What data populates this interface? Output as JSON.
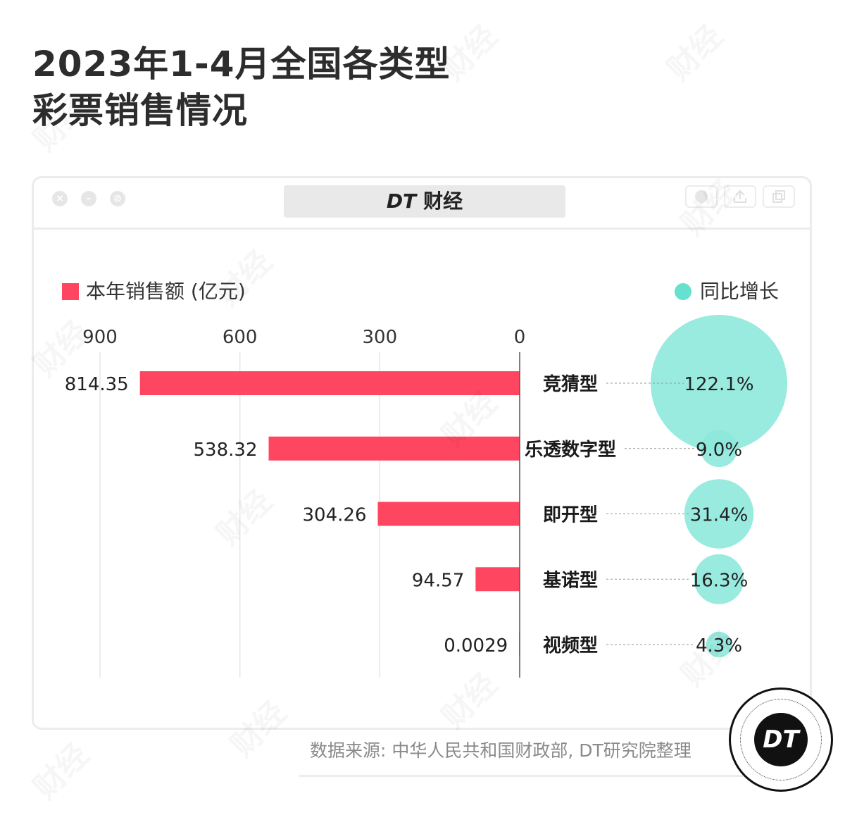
{
  "title": [
    "2023年1-4月全国各类型",
    "彩票销售情况"
  ],
  "window": {
    "address_brand": "DT",
    "address_text": "财经"
  },
  "footer": {
    "source": "数据来源: 中华人民共和国财政部, DT研究院整理"
  },
  "badge": {
    "text": "DT"
  },
  "watermark": "财经",
  "colors": {
    "bar": "#ff4660",
    "bubble": "#8ee8dc",
    "grid": "#e6e6e6",
    "axis": "#555555"
  },
  "chart_data": {
    "type": "bar",
    "orientation": "horizontal",
    "bar_direction": "leftward",
    "categories": [
      "竞猜型",
      "乐透数字型",
      "即开型",
      "基诺型",
      "视频型"
    ],
    "series": [
      {
        "name": "本年销售额 (亿元)",
        "values": [
          814.35,
          538.32,
          304.26,
          94.57,
          0.0029
        ],
        "labels": [
          "814.35",
          "538.32",
          "304.26",
          "94.57",
          "0.0029"
        ]
      },
      {
        "name": "同比增长",
        "type": "bubble",
        "values": [
          122.1,
          9.0,
          31.4,
          16.3,
          4.3
        ],
        "labels": [
          "122.1%",
          "9.0%",
          "31.4%",
          "16.3%",
          "4.3%"
        ]
      }
    ],
    "xlim": [
      0,
      900
    ],
    "ticks": [
      900,
      600,
      300,
      0
    ],
    "tick_labels": [
      "900",
      "600",
      "300",
      "0"
    ],
    "grid": true,
    "legend": [
      "top-left",
      "top-right"
    ]
  }
}
